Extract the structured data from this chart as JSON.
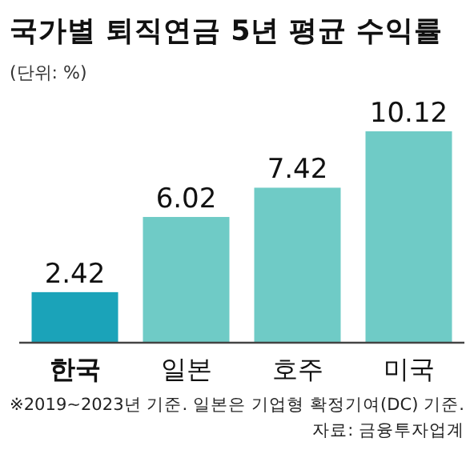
{
  "chart_data": {
    "type": "bar",
    "title": "국가별 퇴직연금 5년 평균 수익률",
    "subtitle": "(단위: %)",
    "categories": [
      "한국",
      "일본",
      "호주",
      "미국"
    ],
    "values": [
      2.42,
      6.02,
      7.42,
      10.12
    ],
    "colors": [
      "#1ba3b9",
      "#6fcbc6",
      "#6fcbc6",
      "#6fcbc6"
    ],
    "data_labels": true,
    "annotations": [
      "※2019~2023년 기준. 일본은 기업형 확정기여(DC) 기준.",
      "자료: 금융투자업계"
    ]
  }
}
